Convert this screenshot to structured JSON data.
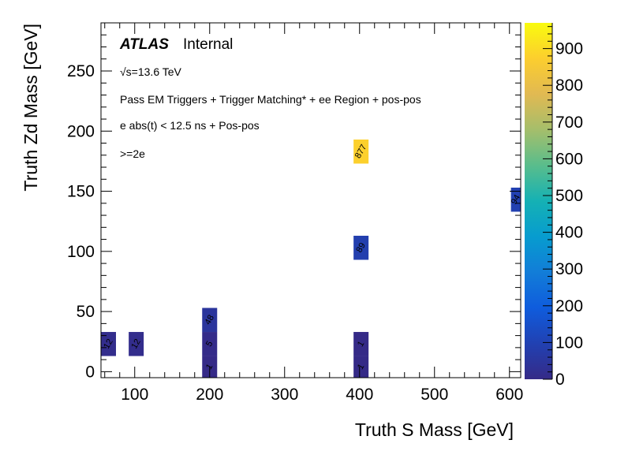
{
  "chart_data": {
    "type": "heatmap",
    "xlabel": "Truth S Mass [GeV]",
    "ylabel": "Truth Zd Mass [GeV]",
    "xlim": [
      55,
      615
    ],
    "ylim": [
      -5,
      290
    ],
    "x_ticks": [
      100,
      200,
      300,
      400,
      500,
      600
    ],
    "y_ticks": [
      0,
      50,
      100,
      150,
      200,
      250
    ],
    "zlim": [
      0,
      970
    ],
    "z_ticks": [
      0,
      100,
      200,
      300,
      400,
      500,
      600,
      700,
      800,
      900
    ],
    "bin_width": 20,
    "bin_height": 20,
    "cells": [
      {
        "x": 65,
        "y": 23,
        "value": 12
      },
      {
        "x": 102,
        "y": 23,
        "value": 12
      },
      {
        "x": 200,
        "y": 3,
        "value": 1
      },
      {
        "x": 200,
        "y": 23,
        "value": 5
      },
      {
        "x": 200,
        "y": 43,
        "value": 48
      },
      {
        "x": 402,
        "y": 3,
        "value": 1
      },
      {
        "x": 402,
        "y": 23,
        "value": 1
      },
      {
        "x": 402,
        "y": 103,
        "value": 89
      },
      {
        "x": 402,
        "y": 183,
        "value": 877
      },
      {
        "x": 612,
        "y": 143,
        "value": 94
      }
    ],
    "annotations": {
      "atlas": "ATLAS",
      "internal": "Internal",
      "energy": "√s=13.6 TeV",
      "selection1": "Pass EM Triggers + Trigger Matching* + ee Region + pos-pos",
      "selection2": "e abs(t) < 12.5 ns + Pos-pos",
      "selection3": ">=2e"
    }
  }
}
